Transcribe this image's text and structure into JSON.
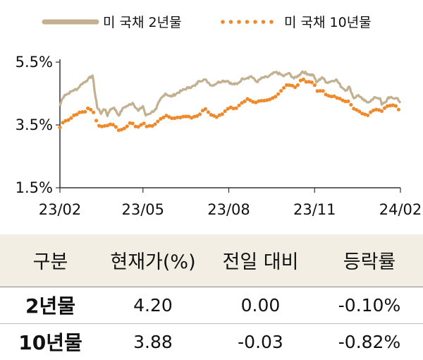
{
  "chart_data": {
    "type": "line",
    "legend": {
      "placement": "top",
      "entries": [
        "미 국채 2년물",
        "미 국채 10년물"
      ]
    },
    "x_tick_labels": [
      "23/02",
      "23/05",
      "23/08",
      "23/11",
      "24/02"
    ],
    "y_tick_labels": [
      "5.5%",
      "3.5%",
      "1.5%"
    ],
    "ylim": [
      1.5,
      5.5
    ],
    "y_ticks": [
      5.5,
      3.5,
      1.5
    ],
    "x_range": [
      "2023-02-01",
      "2024-02-01"
    ],
    "grid": false,
    "series": [
      {
        "name": "미 국채 2년물",
        "style": "solid",
        "color": "#c2b090",
        "points": [
          [
            "2023-02-01",
            4.1
          ],
          [
            "2023-02-03",
            4.3
          ],
          [
            "2023-02-06",
            4.45
          ],
          [
            "2023-02-10",
            4.5
          ],
          [
            "2023-02-15",
            4.6
          ],
          [
            "2023-02-20",
            4.65
          ],
          [
            "2023-02-24",
            4.8
          ],
          [
            "2023-03-01",
            4.9
          ],
          [
            "2023-03-03",
            4.95
          ],
          [
            "2023-03-07",
            5.05
          ],
          [
            "2023-03-08",
            5.07
          ],
          [
            "2023-03-09",
            4.9
          ],
          [
            "2023-03-10",
            4.6
          ],
          [
            "2023-03-13",
            4.05
          ],
          [
            "2023-03-15",
            4.0
          ],
          [
            "2023-03-17",
            3.85
          ],
          [
            "2023-03-20",
            4.0
          ],
          [
            "2023-03-22",
            3.98
          ],
          [
            "2023-03-24",
            3.78
          ],
          [
            "2023-03-27",
            4.0
          ],
          [
            "2023-03-31",
            4.05
          ],
          [
            "2023-04-05",
            3.8
          ],
          [
            "2023-04-10",
            4.05
          ],
          [
            "2023-04-14",
            4.1
          ],
          [
            "2023-04-20",
            4.2
          ],
          [
            "2023-04-26",
            3.95
          ],
          [
            "2023-05-01",
            4.1
          ],
          [
            "2023-05-04",
            3.8
          ],
          [
            "2023-05-10",
            3.9
          ],
          [
            "2023-05-15",
            4.0
          ],
          [
            "2023-05-19",
            4.28
          ],
          [
            "2023-05-25",
            4.5
          ],
          [
            "2023-05-31",
            4.4
          ],
          [
            "2023-06-06",
            4.5
          ],
          [
            "2023-06-12",
            4.6
          ],
          [
            "2023-06-20",
            4.7
          ],
          [
            "2023-06-26",
            4.75
          ],
          [
            "2023-06-30",
            4.9
          ],
          [
            "2023-07-06",
            4.95
          ],
          [
            "2023-07-10",
            4.85
          ],
          [
            "2023-07-14",
            4.75
          ],
          [
            "2023-07-20",
            4.85
          ],
          [
            "2023-07-25",
            4.9
          ],
          [
            "2023-07-31",
            4.9
          ],
          [
            "2023-08-04",
            4.8
          ],
          [
            "2023-08-10",
            4.8
          ],
          [
            "2023-08-16",
            4.98
          ],
          [
            "2023-08-21",
            5.0
          ],
          [
            "2023-08-25",
            5.05
          ],
          [
            "2023-08-31",
            4.87
          ],
          [
            "2023-09-06",
            5.0
          ],
          [
            "2023-09-12",
            5.03
          ],
          [
            "2023-09-20",
            5.18
          ],
          [
            "2023-09-25",
            5.12
          ],
          [
            "2023-09-29",
            5.05
          ],
          [
            "2023-10-04",
            5.15
          ],
          [
            "2023-10-10",
            4.98
          ],
          [
            "2023-10-16",
            5.1
          ],
          [
            "2023-10-19",
            5.2
          ],
          [
            "2023-10-25",
            5.12
          ],
          [
            "2023-10-31",
            5.08
          ],
          [
            "2023-11-03",
            4.85
          ],
          [
            "2023-11-09",
            5.02
          ],
          [
            "2023-11-14",
            4.85
          ],
          [
            "2023-11-20",
            4.9
          ],
          [
            "2023-11-24",
            4.95
          ],
          [
            "2023-11-30",
            4.7
          ],
          [
            "2023-12-05",
            4.6
          ],
          [
            "2023-12-08",
            4.72
          ],
          [
            "2023-12-13",
            4.35
          ],
          [
            "2023-12-18",
            4.45
          ],
          [
            "2023-12-22",
            4.32
          ],
          [
            "2023-12-27",
            4.22
          ],
          [
            "2024-01-02",
            4.3
          ],
          [
            "2024-01-05",
            4.38
          ],
          [
            "2024-01-10",
            4.35
          ],
          [
            "2024-01-12",
            4.15
          ],
          [
            "2024-01-16",
            4.22
          ],
          [
            "2024-01-19",
            4.38
          ],
          [
            "2024-01-24",
            4.35
          ],
          [
            "2024-01-29",
            4.35
          ],
          [
            "2024-02-01",
            4.2
          ]
        ]
      },
      {
        "name": "미 국채 10년물",
        "style": "dotted",
        "color": "#ee8a2c",
        "points": [
          [
            "2023-02-01",
            3.42
          ],
          [
            "2023-02-03",
            3.55
          ],
          [
            "2023-02-07",
            3.63
          ],
          [
            "2023-02-13",
            3.72
          ],
          [
            "2023-02-17",
            3.82
          ],
          [
            "2023-02-22",
            3.9
          ],
          [
            "2023-02-28",
            3.92
          ],
          [
            "2023-03-02",
            4.02
          ],
          [
            "2023-03-07",
            3.98
          ],
          [
            "2023-03-09",
            3.9
          ],
          [
            "2023-03-13",
            3.55
          ],
          [
            "2023-03-17",
            3.42
          ],
          [
            "2023-03-22",
            3.48
          ],
          [
            "2023-03-27",
            3.52
          ],
          [
            "2023-03-31",
            3.48
          ],
          [
            "2023-04-06",
            3.3
          ],
          [
            "2023-04-12",
            3.42
          ],
          [
            "2023-04-18",
            3.58
          ],
          [
            "2023-04-25",
            3.4
          ],
          [
            "2023-05-01",
            3.57
          ],
          [
            "2023-05-05",
            3.45
          ],
          [
            "2023-05-12",
            3.46
          ],
          [
            "2023-05-19",
            3.68
          ],
          [
            "2023-05-26",
            3.8
          ],
          [
            "2023-06-02",
            3.7
          ],
          [
            "2023-06-09",
            3.74
          ],
          [
            "2023-06-16",
            3.77
          ],
          [
            "2023-06-23",
            3.74
          ],
          [
            "2023-06-30",
            3.82
          ],
          [
            "2023-07-06",
            4.05
          ],
          [
            "2023-07-12",
            3.86
          ],
          [
            "2023-07-19",
            3.75
          ],
          [
            "2023-07-26",
            3.87
          ],
          [
            "2023-08-01",
            4.05
          ],
          [
            "2023-08-08",
            4.03
          ],
          [
            "2023-08-15",
            4.2
          ],
          [
            "2023-08-21",
            4.33
          ],
          [
            "2023-08-28",
            4.2
          ],
          [
            "2023-09-05",
            4.27
          ],
          [
            "2023-09-12",
            4.29
          ],
          [
            "2023-09-20",
            4.4
          ],
          [
            "2023-09-27",
            4.61
          ],
          [
            "2023-10-03",
            4.8
          ],
          [
            "2023-10-06",
            4.78
          ],
          [
            "2023-10-12",
            4.7
          ],
          [
            "2023-10-19",
            4.98
          ],
          [
            "2023-10-24",
            4.85
          ],
          [
            "2023-10-31",
            4.88
          ],
          [
            "2023-11-03",
            4.57
          ],
          [
            "2023-11-09",
            4.62
          ],
          [
            "2023-11-14",
            4.45
          ],
          [
            "2023-11-21",
            4.41
          ],
          [
            "2023-11-28",
            4.34
          ],
          [
            "2023-12-04",
            4.25
          ],
          [
            "2023-12-08",
            4.23
          ],
          [
            "2023-12-13",
            4.02
          ],
          [
            "2023-12-19",
            3.93
          ],
          [
            "2023-12-27",
            3.79
          ],
          [
            "2024-01-02",
            3.95
          ],
          [
            "2024-01-08",
            4.01
          ],
          [
            "2024-01-12",
            3.94
          ],
          [
            "2024-01-17",
            4.1
          ],
          [
            "2024-01-23",
            4.13
          ],
          [
            "2024-01-29",
            4.07
          ],
          [
            "2024-02-01",
            3.88
          ]
        ]
      }
    ]
  },
  "table": {
    "headers": [
      "구분",
      "현재가(%)",
      "전일 대비",
      "등락률"
    ],
    "rows": [
      [
        "2년물",
        "4.20",
        "0.00",
        "-0.10%"
      ],
      [
        "10년물",
        "3.88",
        "-0.03",
        "-0.82%"
      ]
    ]
  }
}
